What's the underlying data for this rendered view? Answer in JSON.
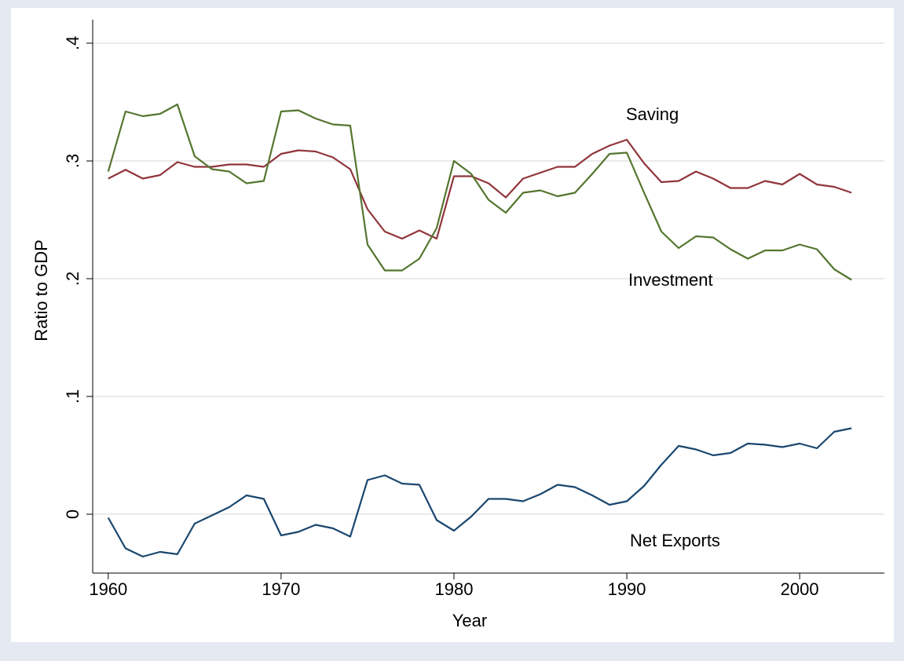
{
  "chart_data": {
    "type": "line",
    "x_label": "Year",
    "y_label": "Ratio to GDP",
    "x": [
      1960,
      1961,
      1962,
      1963,
      1964,
      1965,
      1966,
      1967,
      1968,
      1969,
      1970,
      1971,
      1972,
      1973,
      1974,
      1975,
      1976,
      1977,
      1978,
      1979,
      1980,
      1981,
      1982,
      1983,
      1984,
      1985,
      1986,
      1987,
      1988,
      1989,
      1990,
      1991,
      1992,
      1993,
      1994,
      1995,
      1996,
      1997,
      1998,
      1999,
      2000,
      2001,
      2002,
      2003
    ],
    "series": [
      {
        "name": "Saving",
        "color": "#90353b",
        "values": [
          0.285,
          0.2925,
          0.285,
          0.288,
          0.299,
          0.295,
          0.295,
          0.297,
          0.297,
          0.295,
          0.306,
          0.309,
          0.308,
          0.303,
          0.293,
          0.259,
          0.24,
          0.234,
          0.241,
          0.234,
          0.287,
          0.287,
          0.281,
          0.269,
          0.285,
          0.29,
          0.295,
          0.295,
          0.306,
          0.313,
          0.318,
          0.298,
          0.282,
          0.283,
          0.291,
          0.285,
          0.277,
          0.277,
          0.283,
          0.28,
          0.289,
          0.28,
          0.278,
          0.273
        ]
      },
      {
        "name": "Investment",
        "color": "#55752f",
        "values": [
          0.291,
          0.342,
          0.338,
          0.34,
          0.348,
          0.304,
          0.293,
          0.291,
          0.281,
          0.283,
          0.342,
          0.343,
          0.336,
          0.331,
          0.33,
          0.229,
          0.207,
          0.207,
          0.217,
          0.243,
          0.3,
          0.289,
          0.267,
          0.256,
          0.273,
          0.275,
          0.27,
          0.273,
          0.289,
          0.306,
          0.307,
          0.273,
          0.24,
          0.226,
          0.236,
          0.235,
          0.225,
          0.217,
          0.224,
          0.224,
          0.229,
          0.225,
          0.208,
          0.199
        ]
      },
      {
        "name": "Net Exports",
        "color": "#1a476f",
        "values": [
          -0.003,
          -0.029,
          -0.036,
          -0.032,
          -0.034,
          -0.008,
          -0.001,
          0.006,
          0.016,
          0.013,
          -0.018,
          -0.015,
          -0.009,
          -0.012,
          -0.019,
          0.029,
          0.033,
          0.026,
          0.025,
          -0.005,
          -0.014,
          -0.002,
          0.013,
          0.013,
          0.011,
          0.017,
          0.025,
          0.023,
          0.016,
          0.008,
          0.011,
          0.024,
          0.042,
          0.058,
          0.055,
          0.05,
          0.052,
          0.06,
          0.059,
          0.057,
          0.06,
          0.056,
          0.07,
          0.073
        ]
      }
    ],
    "xlim": [
      1959.1,
      2004.9
    ],
    "xticks": [
      1960,
      1970,
      1980,
      1990,
      2000
    ],
    "ylim": [
      -0.05,
      0.42
    ],
    "yticks": [
      0,
      {
        "value": 0.1,
        "label": ".1"
      },
      {
        "value": 0.2,
        "label": ".2"
      },
      {
        "value": 0.3,
        "label": ".3"
      },
      {
        "value": 0.4,
        "label": ".4"
      }
    ],
    "grid": true
  }
}
